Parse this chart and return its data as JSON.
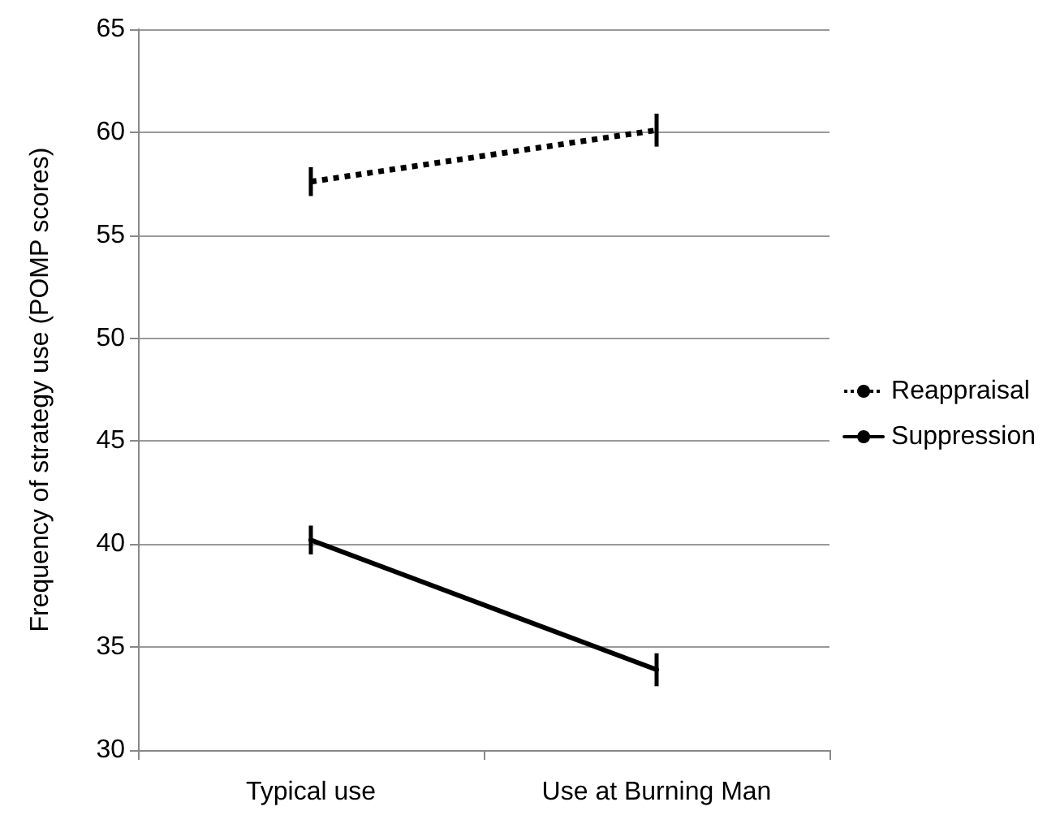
{
  "chart_data": {
    "type": "line",
    "ylabel": "Frequency of strategy use (POMP scores)",
    "categories": [
      "Typical use",
      "Use at Burning Man"
    ],
    "series": [
      {
        "name": "Reappraisal",
        "color": "#000000",
        "values": [
          57.6,
          60.1
        ],
        "errors": [
          0.7,
          0.8
        ],
        "line_style": "dotted"
      },
      {
        "name": "Suppression",
        "color": "#000000",
        "values": [
          40.2,
          33.9
        ],
        "errors": [
          0.7,
          0.8
        ],
        "line_style": "solid"
      }
    ],
    "ylim": [
      30,
      65
    ],
    "yticks": [
      30,
      35,
      40,
      45,
      50,
      55,
      60,
      65
    ],
    "grid": "y",
    "legend": "right",
    "marker": "none"
  }
}
